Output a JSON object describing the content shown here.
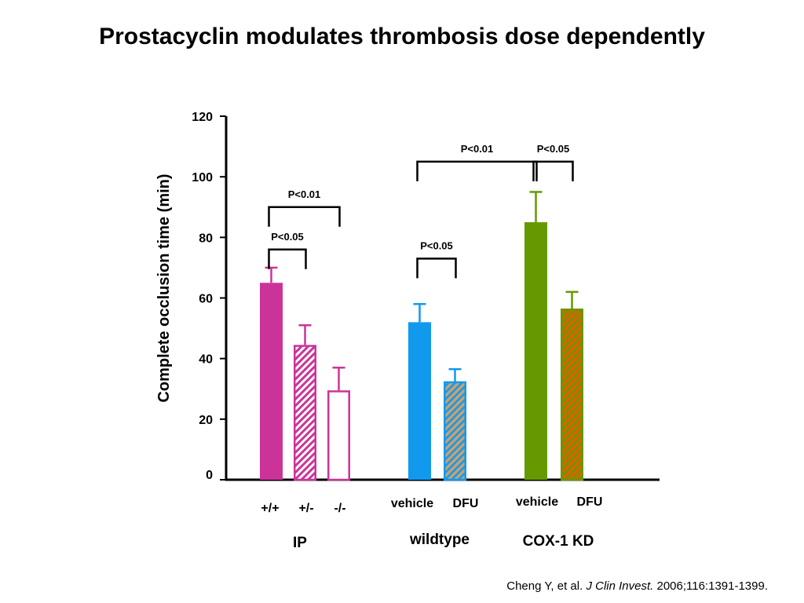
{
  "title": "Prostacyclin modulates thrombosis dose dependently",
  "citation": {
    "authors": "Cheng Y, et al. ",
    "journal": "J Clin Invest.",
    "details": " 2006;116:1391-1399."
  },
  "colors": {
    "magenta": "#cc3399",
    "blue": "#1199ee",
    "green": "#669900",
    "tan": "#c8a070",
    "orange": "#e06000"
  },
  "chart_data": {
    "type": "bar",
    "title": "Prostacyclin modulates thrombosis dose dependently",
    "ylabel": "Complete occlusion time (min)",
    "ylim": [
      0,
      120
    ],
    "yticks": [
      "0",
      "20",
      "40",
      "60",
      "80",
      "100",
      "120"
    ],
    "grid": false,
    "groups": [
      {
        "name": "IP",
        "bars": [
          {
            "label": "+/+",
            "value": 65,
            "error": 5,
            "color": "#cc3399",
            "fill": "solid"
          },
          {
            "label": "+/-",
            "value": 44.5,
            "error": 6.5,
            "color": "#cc3399",
            "fill": "hatch-white"
          },
          {
            "label": "-/-",
            "value": 29.5,
            "error": 7.5,
            "color": "#cc3399",
            "fill": "outline"
          }
        ]
      },
      {
        "name": "wildtype",
        "bars": [
          {
            "label": "vehicle",
            "value": 52,
            "error": 6,
            "color": "#1199ee",
            "fill": "solid"
          },
          {
            "label": "DFU",
            "value": 32.5,
            "error": 4,
            "color": "#1199ee",
            "fill": "hatch-tan"
          }
        ]
      },
      {
        "name": "COX-1 KD",
        "bars": [
          {
            "label": "vehicle",
            "value": 85,
            "error": 10,
            "color": "#669900",
            "fill": "solid"
          },
          {
            "label": "DFU",
            "value": 56.5,
            "error": 5.5,
            "color": "#669900",
            "fill": "hatch-orange"
          }
        ]
      }
    ],
    "annotations": [
      {
        "text": "P<0.05",
        "from": [
          0,
          0
        ],
        "to": [
          0,
          1
        ],
        "level": 76
      },
      {
        "text": "P<0.01",
        "from": [
          0,
          0
        ],
        "to": [
          0,
          2
        ],
        "level": 90
      },
      {
        "text": "P<0.05",
        "from": [
          1,
          0
        ],
        "to": [
          1,
          1
        ],
        "level": 73
      },
      {
        "text": "P<0.01",
        "from": [
          1,
          0
        ],
        "to": [
          2,
          0
        ],
        "level": 105
      },
      {
        "text": "P<0.05",
        "from": [
          2,
          0
        ],
        "to": [
          2,
          1
        ],
        "level": 105
      }
    ]
  }
}
